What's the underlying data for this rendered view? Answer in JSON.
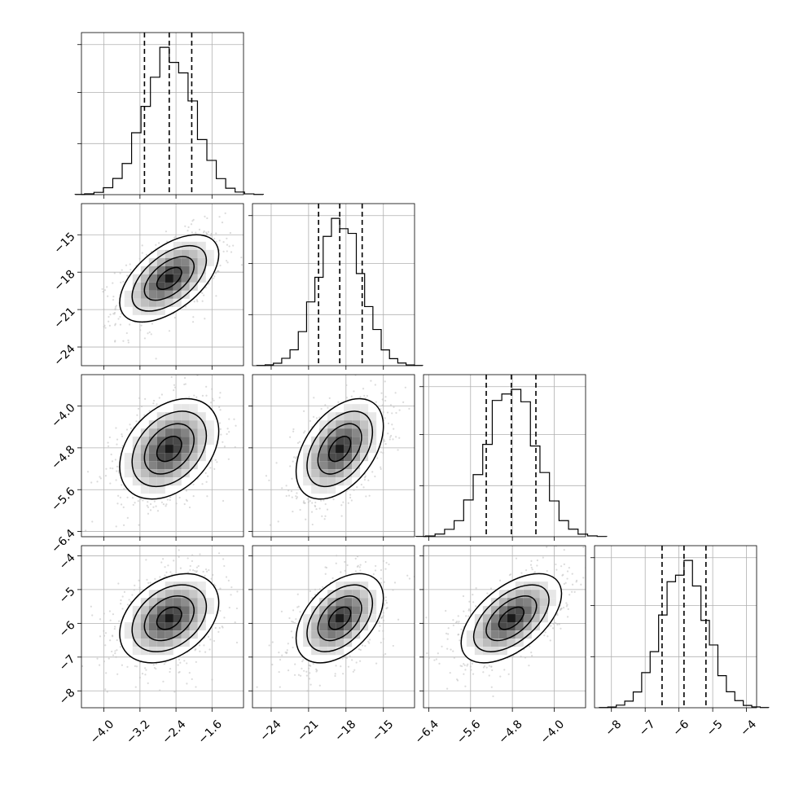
{
  "chart_data": {
    "type": "corner",
    "parameters": [
      {
        "range": [
          -4.5,
          -0.9
        ],
        "ticks": [
          -4.0,
          -3.2,
          -2.4,
          -1.6
        ],
        "tick_labels": [
          "−4.0",
          "−3.2",
          "−2.4",
          "−1.6"
        ],
        "quantiles": [
          -3.1,
          -2.55,
          -2.05
        ],
        "median": -2.55,
        "sigma": 0.55
      },
      {
        "range": [
          -25.5,
          -12.5
        ],
        "ticks": [
          -24,
          -21,
          -18,
          -15
        ],
        "tick_labels": [
          "−24",
          "−21",
          "−18",
          "−15"
        ],
        "quantiles": [
          -20.2,
          -18.5,
          -16.7
        ],
        "median": -18.5,
        "sigma": 1.75
      },
      {
        "range": [
          -6.5,
          -3.4
        ],
        "ticks": [
          -6.4,
          -5.6,
          -4.8,
          -4.0
        ],
        "tick_labels": [
          "−6.4",
          "−5.6",
          "−4.8",
          "−4.0"
        ],
        "quantiles": [
          -5.3,
          -4.82,
          -4.35
        ],
        "median": -4.82,
        "sigma": 0.48
      },
      {
        "range": [
          -8.5,
          -3.7
        ],
        "ticks": [
          -8,
          -7,
          -6,
          -5,
          -4
        ],
        "tick_labels": [
          "−8",
          "−7",
          "−6",
          "−5",
          "−4"
        ],
        "quantiles": [
          -6.5,
          -5.85,
          -5.2
        ],
        "median": -5.85,
        "sigma": 0.66
      }
    ],
    "correlations": [
      [
        1.0,
        0.55,
        0.35,
        0.35
      ],
      [
        0.55,
        1.0,
        0.45,
        0.45
      ],
      [
        0.35,
        0.45,
        1.0,
        0.55
      ],
      [
        0.35,
        0.45,
        0.55,
        1.0
      ]
    ],
    "histogram_bins": 20,
    "grid": true,
    "contour_levels_sigma": [
      0.5,
      1.0,
      1.5,
      2.0
    ],
    "colors": {
      "hist_line": "#000000",
      "scatter_points": "#bdbdbd",
      "density_dark": "#1a1a1a",
      "grid": "#b0b0b0"
    }
  }
}
